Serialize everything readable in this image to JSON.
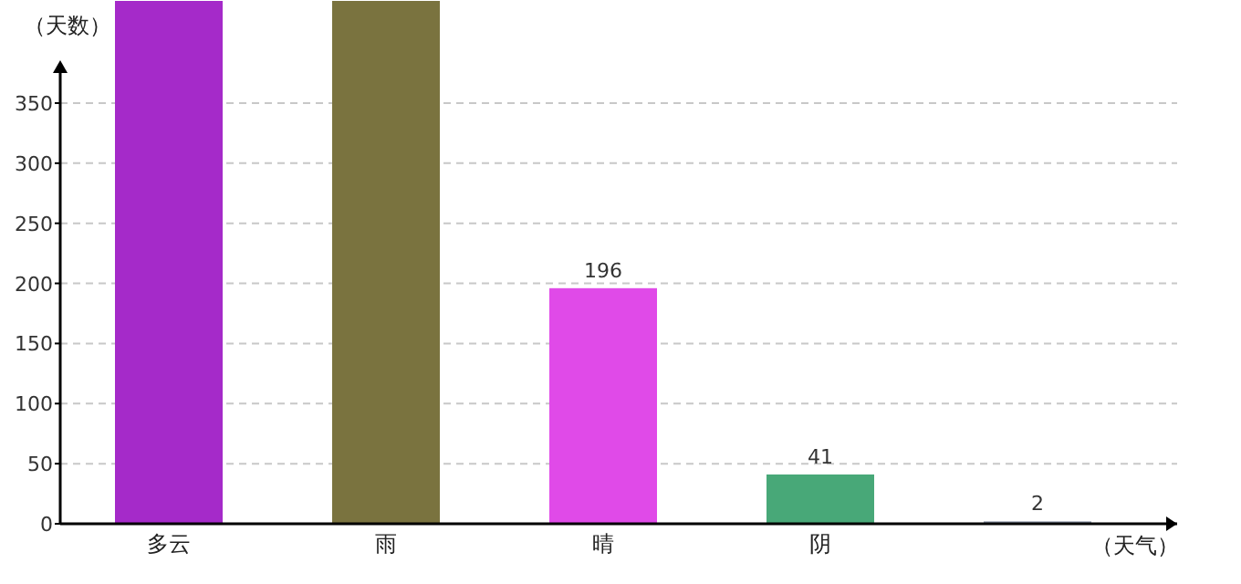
{
  "chart_data": {
    "type": "bar",
    "xlabel": "（天气）",
    "ylabel": "（天数）",
    "categories": [
      "多云",
      "雨",
      "晴",
      "阴",
      null
    ],
    "values": [
      435,
      435,
      196,
      41,
      2
    ],
    "colors": [
      "#a52ac9",
      "#7a733f",
      "#e04ae8",
      "#48a878",
      "#8c96a8"
    ],
    "value_labels": [
      null,
      null,
      "196",
      "41",
      "2"
    ],
    "ylim": [
      0,
      435
    ],
    "yticks": [
      0,
      50,
      100,
      150,
      200,
      250,
      300,
      350
    ],
    "grid": "y"
  }
}
